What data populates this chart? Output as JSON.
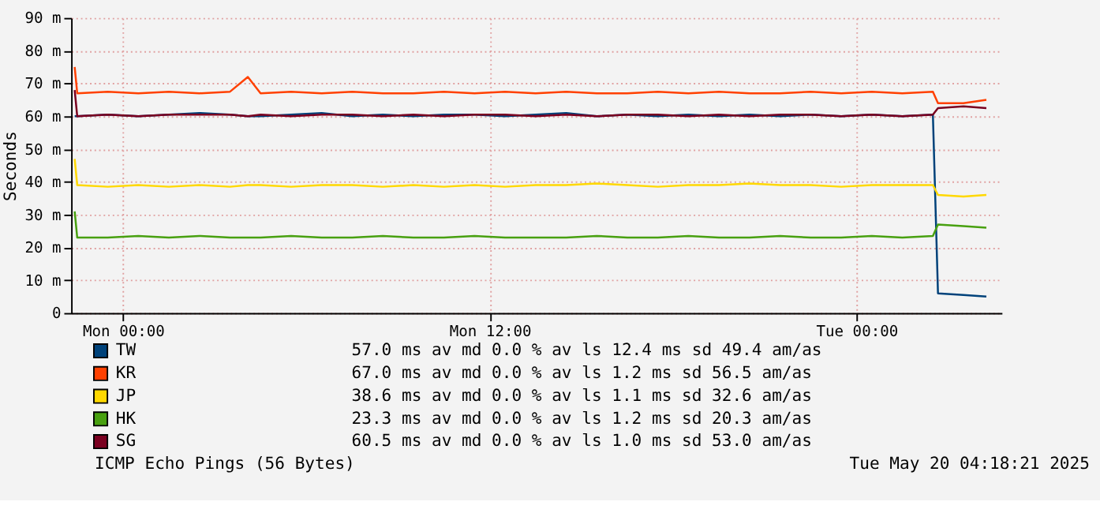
{
  "chart_data": {
    "type": "line",
    "ylabel": "Seconds",
    "x": [
      "2025-05-18T22:25",
      "2025-05-18T22:30",
      "2025-05-18T23:30",
      "2025-05-19T00:30",
      "2025-05-19T01:30",
      "2025-05-19T02:30",
      "2025-05-19T03:30",
      "2025-05-19T04:05",
      "2025-05-19T04:30",
      "2025-05-19T05:30",
      "2025-05-19T06:30",
      "2025-05-19T07:30",
      "2025-05-19T08:30",
      "2025-05-19T09:30",
      "2025-05-19T10:30",
      "2025-05-19T11:30",
      "2025-05-19T12:30",
      "2025-05-19T13:30",
      "2025-05-19T14:30",
      "2025-05-19T15:30",
      "2025-05-19T16:30",
      "2025-05-19T17:30",
      "2025-05-19T18:30",
      "2025-05-19T19:30",
      "2025-05-19T20:30",
      "2025-05-19T21:30",
      "2025-05-19T22:30",
      "2025-05-19T23:30",
      "2025-05-20T00:30",
      "2025-05-20T01:30",
      "2025-05-20T02:30",
      "2025-05-20T02:40",
      "2025-05-20T03:30",
      "2025-05-20T04:15"
    ],
    "series": [
      {
        "name": "TW",
        "color": "#00427a",
        "values": [
          60,
          60,
          60.5,
          60,
          60.5,
          61,
          60.5,
          60,
          60,
          60.5,
          61,
          60,
          60.5,
          60,
          60.5,
          60.5,
          60,
          60.5,
          61,
          60,
          60.5,
          60,
          60.5,
          60,
          60.5,
          60,
          60.5,
          60,
          60.5,
          60,
          60.5,
          6,
          5.5,
          5
        ]
      },
      {
        "name": "KR",
        "color": "#ff4000",
        "values": [
          75,
          67,
          67.5,
          67,
          67.5,
          67,
          67.5,
          72,
          67,
          67.5,
          67,
          67.5,
          67,
          67,
          67.5,
          67,
          67.5,
          67,
          67.5,
          67,
          67,
          67.5,
          67,
          67.5,
          67,
          67,
          67.5,
          67,
          67.5,
          67,
          67.5,
          64,
          64,
          65
        ]
      },
      {
        "name": "JP",
        "color": "#ffd800",
        "values": [
          47,
          39,
          38.5,
          39,
          38.5,
          39,
          38.5,
          39,
          39,
          38.5,
          39,
          39,
          38.5,
          39,
          38.5,
          39,
          38.5,
          39,
          39,
          39.5,
          39,
          38.5,
          39,
          39,
          39.5,
          39,
          39,
          38.5,
          39,
          39,
          39,
          36,
          35.5,
          36
        ]
      },
      {
        "name": "HK",
        "color": "#48a010",
        "values": [
          31,
          23,
          23,
          23.5,
          23,
          23.5,
          23,
          23,
          23,
          23.5,
          23,
          23,
          23.5,
          23,
          23,
          23.5,
          23,
          23,
          23,
          23.5,
          23,
          23,
          23.5,
          23,
          23,
          23.5,
          23,
          23,
          23.5,
          23,
          23.5,
          27,
          26.5,
          26
        ]
      },
      {
        "name": "SG",
        "color": "#7a0020",
        "values": [
          68,
          60,
          60.5,
          60,
          60.5,
          60.5,
          60.5,
          60,
          60.5,
          60,
          60.5,
          60.5,
          60,
          60.5,
          60,
          60.5,
          60.5,
          60,
          60.5,
          60,
          60.5,
          60.5,
          60,
          60.5,
          60,
          60.5,
          60.5,
          60,
          60.5,
          60,
          60.5,
          62.5,
          63,
          62.5
        ]
      }
    ],
    "xlim": [
      "2025-05-18T22:18",
      "2025-05-20T04:45"
    ],
    "xticks": [
      {
        "value": "2025-05-19T00:00",
        "label": "Mon 00:00"
      },
      {
        "value": "2025-05-19T12:00",
        "label": "Mon 12:00"
      },
      {
        "value": "2025-05-20T00:00",
        "label": "Tue 00:00"
      }
    ],
    "ylim": [
      0,
      90
    ],
    "yticks": [
      0,
      {
        "value": 10,
        "label": "10 m"
      },
      {
        "value": 20,
        "label": "20 m"
      },
      {
        "value": 30,
        "label": "30 m"
      },
      {
        "value": 40,
        "label": "40 m"
      },
      {
        "value": 50,
        "label": "50 m"
      },
      {
        "value": 60,
        "label": "60 m"
      },
      {
        "value": 70,
        "label": "70 m"
      },
      {
        "value": 80,
        "label": "80 m"
      },
      {
        "value": 90,
        "label": "90 m"
      }
    ],
    "grid": true,
    "legend": "bottom",
    "line_style": "solid",
    "annotations": [
      "57.0 ms av md    0.0 % av ls   12.4 ms sd   49.4   am/as",
      "67.0 ms av md    0.0 % av ls    1.2 ms sd   56.5   am/as",
      "38.6 ms av md    0.0 % av ls    1.1 ms sd   32.6   am/as",
      "23.3 ms av md    0.0 % av ls    1.2 ms sd   20.3   am/as",
      "60.5 ms av md    0.0 % av ls    1.0 ms sd   53.0   am/as",
      "ICMP Echo Pings (56 Bytes)",
      "Tue May 20 04:18:21 2025"
    ]
  }
}
